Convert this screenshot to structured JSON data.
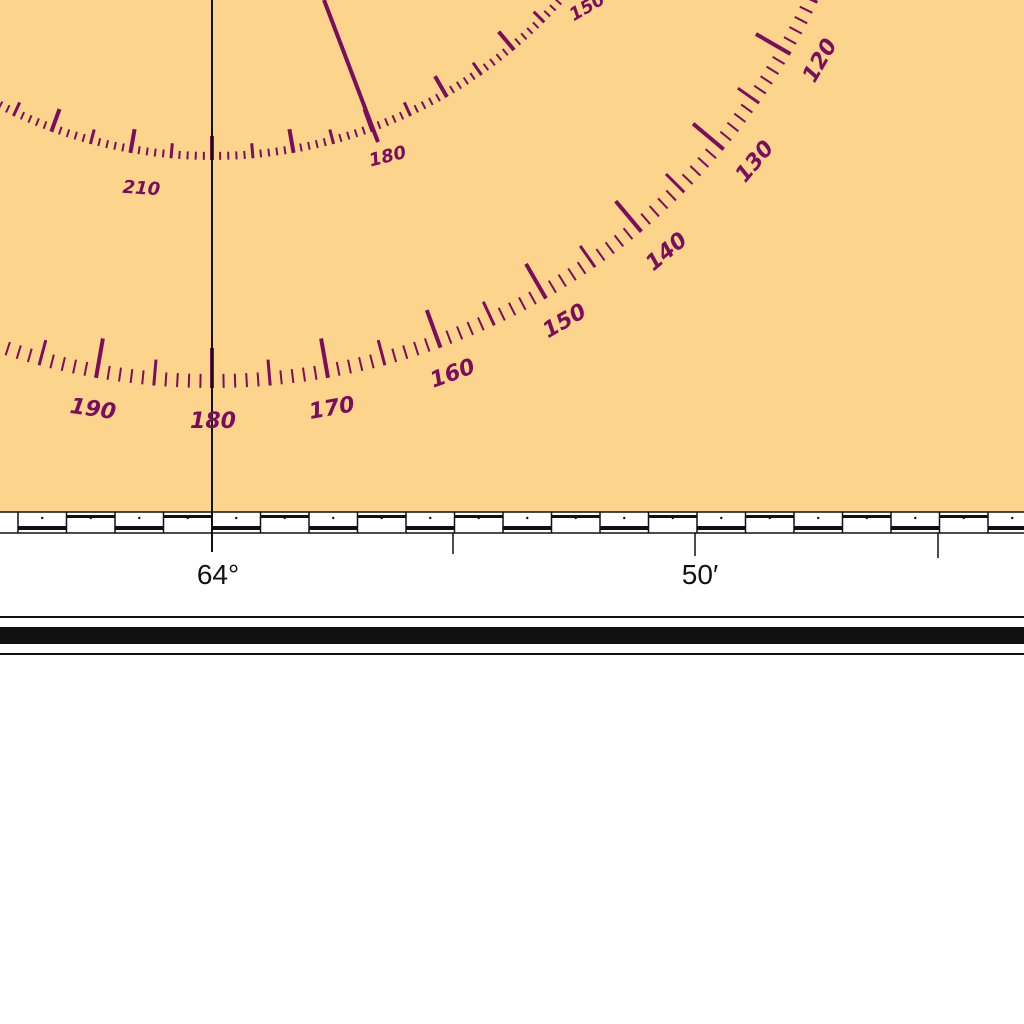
{
  "colors": {
    "land": "#fcd48c",
    "rose": "#7b0d5e",
    "ink": "#111111",
    "paper": "#ffffff"
  },
  "outer_rose": {
    "labels": [
      "120",
      "130",
      "140",
      "150",
      "160",
      "170",
      "180",
      "190"
    ],
    "label_values": [
      120,
      130,
      140,
      150,
      160,
      170,
      180,
      190
    ]
  },
  "inner_rose": {
    "labels": [
      "150",
      "180",
      "210"
    ],
    "label_values": [
      150,
      180,
      210
    ]
  },
  "longitude": {
    "labels": [
      "64°",
      "50′"
    ]
  }
}
